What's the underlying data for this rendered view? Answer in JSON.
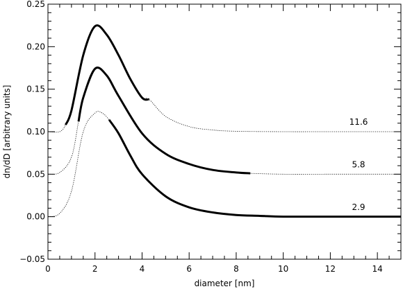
{
  "chart_data": {
    "type": "line",
    "xlabel": "diameter [nm]",
    "ylabel": "dn/dD [arbitrary units]",
    "xlim": [
      0,
      15
    ],
    "ylim": [
      -0.05,
      0.25
    ],
    "xticks": [
      0,
      2,
      4,
      6,
      8,
      10,
      12,
      14
    ],
    "xtick_labels": [
      "0",
      "2",
      "4",
      "6",
      "8",
      "10",
      "12",
      "14"
    ],
    "yticks": [
      -0.05,
      0.0,
      0.05,
      0.1,
      0.15,
      0.2,
      0.25
    ],
    "ytick_labels": [
      "−0.05",
      "0.00",
      "0.05",
      "0.10",
      "0.15",
      "0.20",
      "0.25"
    ],
    "grid": false,
    "legend": "none",
    "series": [
      {
        "name": "11.6",
        "label_at": {
          "x": 13.2,
          "y": 0.108
        },
        "x": [
          0,
          0.5,
          0.75,
          1.0,
          1.5,
          2.0,
          2.5,
          3.0,
          3.5,
          4.0,
          4.3,
          5.0,
          6.0,
          7.0,
          8.0,
          10.0,
          12.0,
          15.0
        ],
        "y": [
          0.1,
          0.1,
          0.108,
          0.125,
          0.19,
          0.224,
          0.214,
          0.19,
          0.162,
          0.14,
          0.138,
          0.118,
          0.106,
          0.102,
          0.1005,
          0.1,
          0.1,
          0.1
        ],
        "thick_range": [
          0.75,
          4.3
        ]
      },
      {
        "name": "5.8",
        "label_at": {
          "x": 13.2,
          "y": 0.058
        },
        "x": [
          0,
          0.5,
          1.0,
          1.3,
          1.5,
          2.0,
          2.5,
          3.0,
          4.0,
          5.0,
          6.0,
          7.0,
          8.0,
          8.6,
          10.0,
          12.0,
          15.0
        ],
        "y": [
          0.05,
          0.052,
          0.07,
          0.112,
          0.14,
          0.174,
          0.166,
          0.142,
          0.098,
          0.074,
          0.062,
          0.055,
          0.052,
          0.051,
          0.05,
          0.05,
          0.05
        ],
        "thick_range": [
          1.3,
          8.6
        ]
      },
      {
        "name": "2.9",
        "label_at": {
          "x": 13.2,
          "y": 0.008
        },
        "x": [
          0,
          0.5,
          1.0,
          1.5,
          2.0,
          2.3,
          2.6,
          3.0,
          3.5,
          4.0,
          5.0,
          6.0,
          7.0,
          8.0,
          9.0,
          10.0,
          12.0,
          15.0
        ],
        "y": [
          0.0,
          0.004,
          0.03,
          0.1,
          0.122,
          0.122,
          0.114,
          0.098,
          0.072,
          0.05,
          0.024,
          0.011,
          0.005,
          0.002,
          0.001,
          0.0,
          0.0,
          0.0
        ],
        "thick_range": [
          2.6,
          15.0
        ]
      }
    ]
  }
}
